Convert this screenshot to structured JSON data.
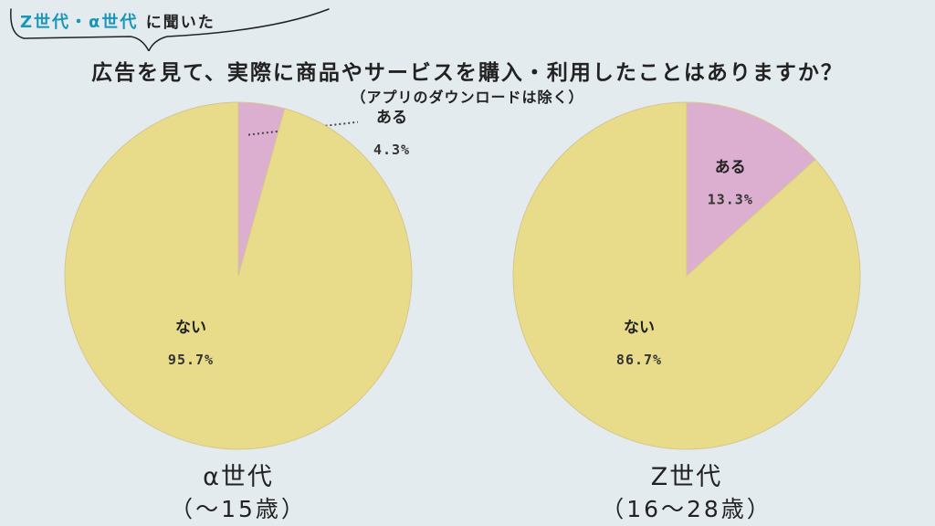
{
  "header": {
    "tag_highlight": "Z世代・α世代",
    "tag_rest": "に聞いた",
    "question": "広告を見て、実際に商品やサービスを購入・利用したことはありますか？",
    "note": "（アプリのダウンロードは除く）"
  },
  "colors": {
    "background": "#e4ebef",
    "no": "#e8dc8b",
    "yes": "#dcafd1",
    "accent": "#1a96b8"
  },
  "chart_data": [
    {
      "type": "pie",
      "title": "α世代",
      "subtitle": "（〜15歳）",
      "slices": [
        {
          "label": "ある",
          "value": 4.3,
          "display": "4.3%"
        },
        {
          "label": "ない",
          "value": 95.7,
          "display": "95.7%"
        }
      ]
    },
    {
      "type": "pie",
      "title": "Z世代",
      "subtitle": "（16〜28歳）",
      "slices": [
        {
          "label": "ある",
          "value": 13.3,
          "display": "13.3%"
        },
        {
          "label": "ない",
          "value": 86.7,
          "display": "86.7%"
        }
      ]
    }
  ]
}
